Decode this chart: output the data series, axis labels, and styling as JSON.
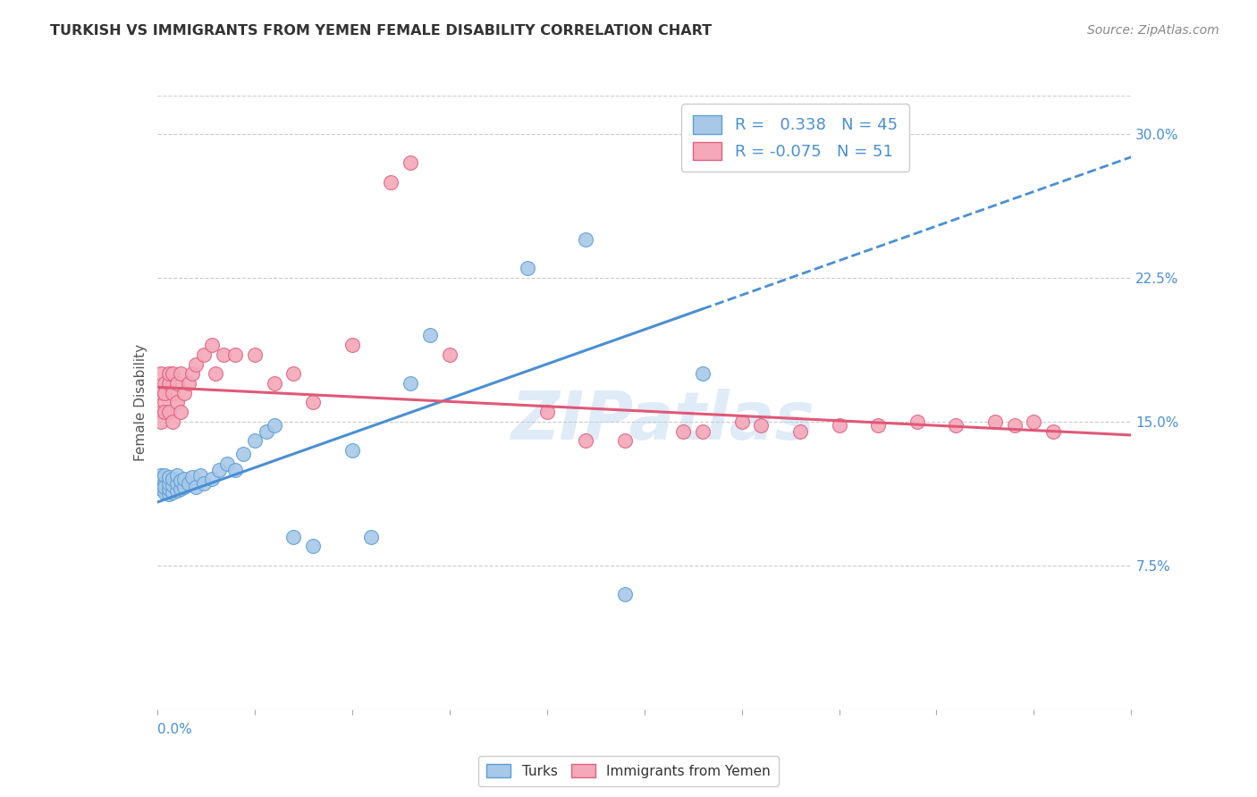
{
  "title": "TURKISH VS IMMIGRANTS FROM YEMEN FEMALE DISABILITY CORRELATION CHART",
  "source": "Source: ZipAtlas.com",
  "ylabel": "Female Disability",
  "xlim": [
    0.0,
    0.25
  ],
  "ylim": [
    0.0,
    0.32
  ],
  "yticks": [
    0.075,
    0.15,
    0.225,
    0.3
  ],
  "ytick_labels": [
    "7.5%",
    "15.0%",
    "22.5%",
    "30.0%"
  ],
  "xtick_label_left": "0.0%",
  "turks_color": "#a8c8e8",
  "yemen_color": "#f4a8b8",
  "turks_edge_color": "#5a9fd4",
  "yemen_edge_color": "#e06080",
  "turks_line_color": "#4a8fd4",
  "yemen_line_color": "#e05878",
  "watermark": "ZIPatlas",
  "legend_label_1": "R =   0.338   N = 45",
  "legend_label_2": "R = -0.075   N = 51",
  "bottom_legend_1": "Turks",
  "bottom_legend_2": "Immigrants from Yemen",
  "turks_x": [
    0.001,
    0.001,
    0.001,
    0.001,
    0.002,
    0.002,
    0.002,
    0.002,
    0.003,
    0.003,
    0.003,
    0.003,
    0.004,
    0.004,
    0.004,
    0.005,
    0.005,
    0.005,
    0.006,
    0.006,
    0.007,
    0.007,
    0.008,
    0.009,
    0.01,
    0.011,
    0.012,
    0.014,
    0.016,
    0.018,
    0.02,
    0.022,
    0.025,
    0.028,
    0.03,
    0.035,
    0.04,
    0.05,
    0.055,
    0.065,
    0.07,
    0.095,
    0.11,
    0.12,
    0.14
  ],
  "turks_y": [
    0.118,
    0.122,
    0.115,
    0.12,
    0.113,
    0.118,
    0.122,
    0.116,
    0.112,
    0.115,
    0.118,
    0.121,
    0.113,
    0.117,
    0.12,
    0.114,
    0.118,
    0.122,
    0.115,
    0.119,
    0.116,
    0.12,
    0.118,
    0.121,
    0.116,
    0.122,
    0.118,
    0.12,
    0.125,
    0.128,
    0.125,
    0.133,
    0.14,
    0.145,
    0.148,
    0.09,
    0.085,
    0.135,
    0.09,
    0.17,
    0.195,
    0.23,
    0.245,
    0.06,
    0.175
  ],
  "yemen_x": [
    0.001,
    0.001,
    0.001,
    0.001,
    0.002,
    0.002,
    0.002,
    0.002,
    0.003,
    0.003,
    0.003,
    0.004,
    0.004,
    0.004,
    0.005,
    0.005,
    0.006,
    0.006,
    0.007,
    0.008,
    0.009,
    0.01,
    0.012,
    0.014,
    0.015,
    0.017,
    0.02,
    0.025,
    0.03,
    0.035,
    0.04,
    0.05,
    0.06,
    0.065,
    0.075,
    0.1,
    0.11,
    0.12,
    0.135,
    0.14,
    0.15,
    0.155,
    0.165,
    0.175,
    0.185,
    0.195,
    0.205,
    0.215,
    0.22,
    0.225,
    0.23
  ],
  "yemen_y": [
    0.155,
    0.165,
    0.15,
    0.175,
    0.16,
    0.17,
    0.155,
    0.165,
    0.17,
    0.155,
    0.175,
    0.165,
    0.15,
    0.175,
    0.16,
    0.17,
    0.155,
    0.175,
    0.165,
    0.17,
    0.175,
    0.18,
    0.185,
    0.19,
    0.175,
    0.185,
    0.185,
    0.185,
    0.17,
    0.175,
    0.16,
    0.19,
    0.275,
    0.285,
    0.185,
    0.155,
    0.14,
    0.14,
    0.145,
    0.145,
    0.15,
    0.148,
    0.145,
    0.148,
    0.148,
    0.15,
    0.148,
    0.15,
    0.148,
    0.15,
    0.145
  ],
  "turks_R": 0.338,
  "yemen_R": -0.075,
  "turks_intercept": 0.108,
  "turks_slope": 0.72,
  "yemen_intercept": 0.168,
  "yemen_slope": -0.1
}
